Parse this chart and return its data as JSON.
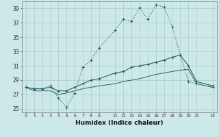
{
  "xlabel": "Humidex (Indice chaleur)",
  "background_color": "#cce8e8",
  "grid_color": "#aacccc",
  "line_color": "#2a6060",
  "x_ticks": [
    0,
    1,
    2,
    3,
    4,
    5,
    6,
    7,
    8,
    9,
    11,
    12,
    13,
    14,
    15,
    16,
    17,
    18,
    19,
    20,
    21,
    23
  ],
  "yticks": [
    25,
    27,
    29,
    31,
    33,
    35,
    37,
    39
  ],
  "ylim": [
    24.5,
    40.0
  ],
  "xlim": [
    -0.5,
    23.5
  ],
  "series1_x": [
    0,
    1,
    2,
    3,
    4,
    5,
    6,
    7,
    8,
    9,
    11,
    12,
    13,
    14,
    15,
    16,
    17,
    18,
    19,
    20,
    21,
    23
  ],
  "series1_y": [
    28.0,
    27.8,
    27.8,
    28.2,
    26.5,
    25.2,
    27.2,
    30.8,
    31.8,
    33.5,
    36.0,
    37.5,
    37.2,
    39.1,
    37.5,
    39.5,
    39.2,
    36.5,
    32.5,
    28.8,
    28.5,
    28.0
  ],
  "series2_x": [
    0,
    1,
    2,
    3,
    4,
    5,
    6,
    7,
    8,
    9,
    11,
    12,
    13,
    14,
    15,
    16,
    17,
    18,
    19,
    20,
    21,
    23
  ],
  "series2_y": [
    28.0,
    27.8,
    27.8,
    28.0,
    27.5,
    27.5,
    28.0,
    28.5,
    29.0,
    29.2,
    30.0,
    30.2,
    30.8,
    31.0,
    31.2,
    31.5,
    31.8,
    32.2,
    32.5,
    31.0,
    28.8,
    28.2
  ],
  "series3_x": [
    0,
    1,
    2,
    3,
    4,
    5,
    6,
    7,
    8,
    9,
    11,
    12,
    13,
    14,
    15,
    16,
    17,
    18,
    19,
    20,
    21,
    23
  ],
  "series3_y": [
    28.0,
    27.5,
    27.5,
    27.5,
    27.0,
    27.2,
    27.5,
    27.8,
    28.0,
    28.2,
    28.5,
    28.8,
    29.0,
    29.2,
    29.5,
    29.8,
    30.0,
    30.2,
    30.4,
    30.5,
    28.5,
    28.0
  ]
}
